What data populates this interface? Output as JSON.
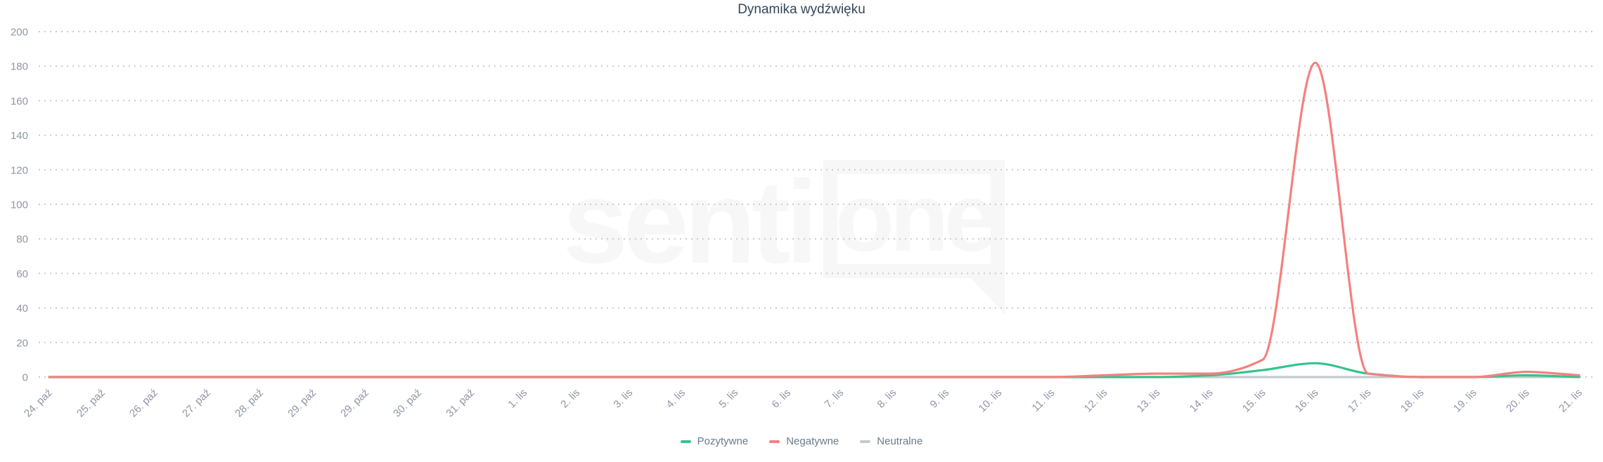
{
  "chart_data": {
    "type": "line",
    "title": "Dynamika wydźwięku",
    "watermark": {
      "senti": "senti",
      "one": "one"
    },
    "categories": [
      "24. paź",
      "25. paź",
      "26. paź",
      "27. paź",
      "28. paź",
      "29. paź",
      "29. paź",
      "30. paź",
      "31. paź",
      "1. lis",
      "2. lis",
      "3. lis",
      "4. lis",
      "5. lis",
      "6. lis",
      "7. lis",
      "8. lis",
      "9. lis",
      "10. lis",
      "11. lis",
      "12. lis",
      "13. lis",
      "14. lis",
      "15. lis",
      "16. lis",
      "17. lis",
      "18. lis",
      "19. lis",
      "20. lis",
      "21. lis"
    ],
    "series": [
      {
        "name": "Pozytywne",
        "color": "#36c28e",
        "values": [
          0,
          0,
          0,
          0,
          0,
          0,
          0,
          0,
          0,
          0,
          0,
          0,
          0,
          0,
          0,
          0,
          0,
          0,
          0,
          0,
          0,
          0,
          1,
          4,
          8,
          2,
          0,
          0,
          1,
          0
        ]
      },
      {
        "name": "Negatywne",
        "color": "#f5807f",
        "values": [
          0,
          0,
          0,
          0,
          0,
          0,
          0,
          0,
          0,
          0,
          0,
          0,
          0,
          0,
          0,
          0,
          0,
          0,
          0,
          0,
          1,
          2,
          2,
          10,
          182,
          2,
          0,
          0,
          3,
          1
        ]
      },
      {
        "name": "Neutralne",
        "color": "#c6c9cd",
        "values": [
          0,
          0,
          0,
          0,
          0,
          0,
          0,
          0,
          0,
          0,
          0,
          0,
          0,
          0,
          0,
          0,
          0,
          0,
          0,
          0,
          0,
          0,
          0,
          0,
          0,
          0,
          0,
          0,
          0,
          0
        ]
      }
    ],
    "yticks": [
      0,
      20,
      40,
      60,
      80,
      100,
      120,
      140,
      160,
      180,
      200
    ],
    "ylim": [
      0,
      200
    ],
    "grid": "dotted-horizontal",
    "legend_position": "bottom",
    "colors": {
      "background": "#ffffff",
      "grid": "#cbcbcb",
      "axis_labels": "#8e96a5",
      "title": "#33475b",
      "legend_labels": "#6d7a8b",
      "watermark": "#f7f7f7",
      "positive": "#36c28e",
      "negative": "#f5807f",
      "neutral": "#c6c9cd"
    }
  }
}
